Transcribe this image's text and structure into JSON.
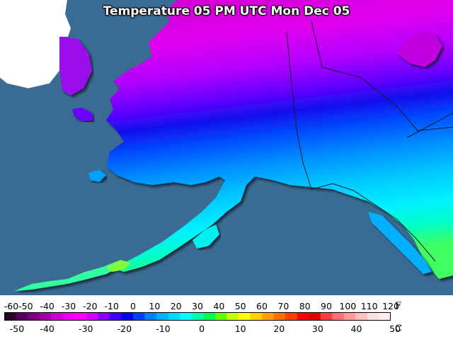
{
  "title": "Temperature 05 PM UTC Mon Dec 05",
  "legend": {
    "f_ticks": [
      "-60",
      "-50",
      "-40",
      "-30",
      "-20",
      "-10",
      "0",
      "10",
      "20",
      "30",
      "40",
      "50",
      "60",
      "70",
      "80",
      "90",
      "100",
      "110",
      "120"
    ],
    "c_ticks": [
      "-50",
      "-40",
      "-30",
      "-20",
      "-10",
      "0",
      "10",
      "20",
      "30",
      "40",
      "50"
    ],
    "f_unit": "F",
    "c_unit": "C",
    "colors": [
      "#2a002a",
      "#55005a",
      "#7a0080",
      "#a000a8",
      "#c800d0",
      "#e600f0",
      "#ff00ff",
      "#d000ff",
      "#8a00ff",
      "#4000ff",
      "#0000ee",
      "#0040ff",
      "#0080ff",
      "#00b0ff",
      "#00d8ff",
      "#00ffff",
      "#00ffb0",
      "#00ff50",
      "#60ff00",
      "#c8ff00",
      "#ffff00",
      "#ffd000",
      "#ffa000",
      "#ff7000",
      "#ff4000",
      "#ff0000",
      "#e00000",
      "#ff4040",
      "#ff7070",
      "#ff9a9a",
      "#ffc0c0",
      "#ffe0e0",
      "#fff0f0"
    ]
  },
  "map": {
    "ocean_color": "#3a6b93",
    "unknown_area_color": "#ffffff",
    "border_color": "#1a1a2a"
  }
}
